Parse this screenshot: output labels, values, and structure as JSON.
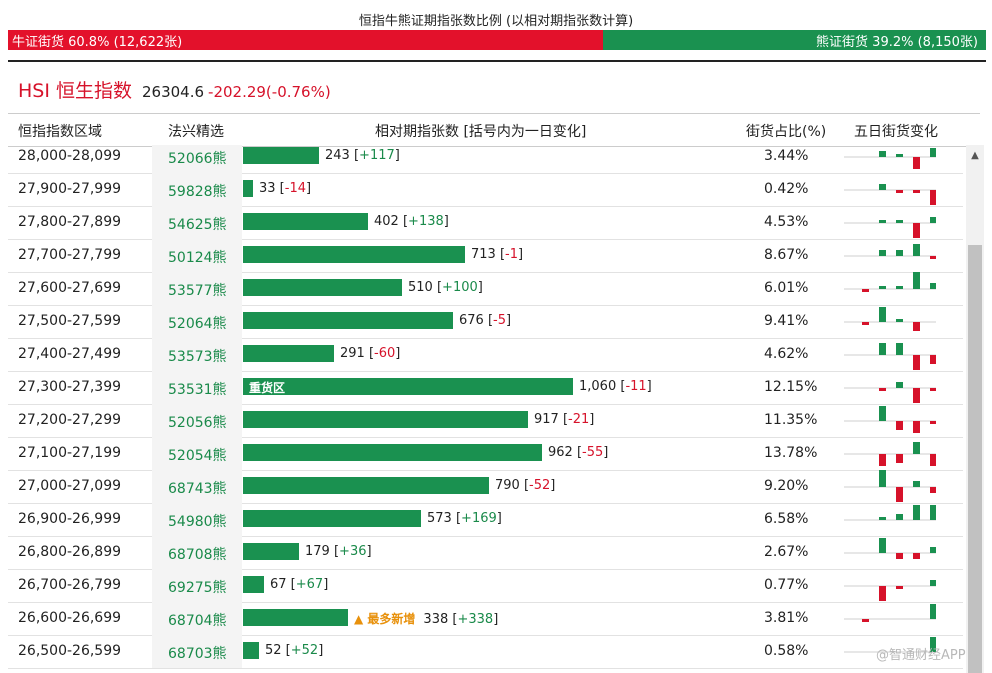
{
  "title": "恒指牛熊证期指张数比例 (以相对期指张数计算)",
  "ratio": {
    "bull_label": "牛证街货 60.8% (12,622张)",
    "bear_label": "熊证街货 39.2% (8,150张)",
    "bull_fraction": 0.608,
    "bull_color": "#e3112b",
    "bear_color": "#1a9150"
  },
  "index": {
    "name": "HSI 恒生指数",
    "value": "26304.6",
    "change": "-202.29(-0.76%)"
  },
  "columns": {
    "range": "恒指指数区域",
    "code": "法兴精选",
    "contracts": "相对期指张数 [括号内为一日变化]",
    "pct": "街货占比(%)",
    "five_day": "五日街货变化"
  },
  "max_count": 1060,
  "rows": [
    {
      "range": "28,000-28,099",
      "code": "52066熊",
      "count": 243,
      "count_label": "243",
      "delta": "+117",
      "pct": "3.44%",
      "tag": "",
      "spark": [
        0,
        2,
        1,
        -4,
        3
      ]
    },
    {
      "range": "27,900-27,999",
      "code": "59828熊",
      "count": 33,
      "count_label": "33",
      "delta": "-14",
      "pct": "0.42%",
      "tag": "",
      "spark": [
        0,
        2,
        -1,
        -1,
        -5
      ]
    },
    {
      "range": "27,800-27,899",
      "code": "54625熊",
      "count": 402,
      "count_label": "402",
      "delta": "+138",
      "pct": "4.53%",
      "tag": "",
      "spark": [
        0,
        1,
        1,
        -5,
        2
      ]
    },
    {
      "range": "27,700-27,799",
      "code": "50124熊",
      "count": 713,
      "count_label": "713",
      "delta": "-1",
      "pct": "8.67%",
      "tag": "",
      "spark": [
        0,
        2,
        2,
        4,
        -1
      ]
    },
    {
      "range": "27,600-27,699",
      "code": "53577熊",
      "count": 510,
      "count_label": "510",
      "delta": "+100",
      "pct": "6.01%",
      "tag": "",
      "spark": [
        -1,
        1,
        1,
        6,
        2
      ]
    },
    {
      "range": "27,500-27,599",
      "code": "52064熊",
      "count": 676,
      "count_label": "676",
      "delta": "-5",
      "pct": "9.41%",
      "tag": "",
      "spark": [
        -1,
        5,
        1,
        -3,
        0
      ]
    },
    {
      "range": "27,400-27,499",
      "code": "53573熊",
      "count": 291,
      "count_label": "291",
      "delta": "-60",
      "pct": "4.62%",
      "tag": "",
      "spark": [
        0,
        4,
        4,
        -5,
        -3
      ]
    },
    {
      "range": "27,300-27,399",
      "code": "53531熊",
      "count": 1060,
      "count_label": "1,060",
      "delta": "-11",
      "pct": "12.15%",
      "tag": "重货区",
      "spark": [
        0,
        -1,
        2,
        -5,
        -1
      ]
    },
    {
      "range": "27,200-27,299",
      "code": "52056熊",
      "count": 917,
      "count_label": "917",
      "delta": "-21",
      "pct": "11.35%",
      "tag": "",
      "spark": [
        0,
        5,
        -3,
        -4,
        -1
      ]
    },
    {
      "range": "27,100-27,199",
      "code": "52054熊",
      "count": 962,
      "count_label": "962",
      "delta": "-55",
      "pct": "13.78%",
      "tag": "",
      "spark": [
        0,
        -4,
        -3,
        4,
        -4
      ]
    },
    {
      "range": "27,000-27,099",
      "code": "68743熊",
      "count": 790,
      "count_label": "790",
      "delta": "-52",
      "pct": "9.20%",
      "tag": "",
      "spark": [
        0,
        6,
        -5,
        2,
        -2
      ]
    },
    {
      "range": "26,900-26,999",
      "code": "54980熊",
      "count": 573,
      "count_label": "573",
      "delta": "+169",
      "pct": "6.58%",
      "tag": "",
      "spark": [
        0,
        1,
        2,
        5,
        5
      ]
    },
    {
      "range": "26,800-26,899",
      "code": "68708熊",
      "count": 179,
      "count_label": "179",
      "delta": "+36",
      "pct": "2.67%",
      "tag": "",
      "spark": [
        0,
        5,
        -2,
        -2,
        2
      ]
    },
    {
      "range": "26,700-26,799",
      "code": "69275熊",
      "count": 67,
      "count_label": "67",
      "delta": "+67",
      "pct": "0.77%",
      "tag": "",
      "spark": [
        0,
        -5,
        -1,
        0,
        2
      ]
    },
    {
      "range": "26,600-26,699",
      "code": "68704熊",
      "count": 338,
      "count_label": "338",
      "delta": "+338",
      "pct": "3.81%",
      "tag": "▲ 最多新增",
      "spark": [
        -1,
        0,
        0,
        0,
        5
      ]
    },
    {
      "range": "26,500-26,599",
      "code": "68703熊",
      "count": 52,
      "count_label": "52",
      "delta": "+52",
      "pct": "0.58%",
      "tag": "",
      "spark": [
        0,
        0,
        0,
        0,
        5
      ]
    }
  ],
  "colors": {
    "up": "#1a9150",
    "down": "#d6122a",
    "heavy_tag": "#ffffff",
    "new_tag": "#e8910c"
  },
  "scroll_up_icon": "▲",
  "watermark": "@智通财经APP"
}
